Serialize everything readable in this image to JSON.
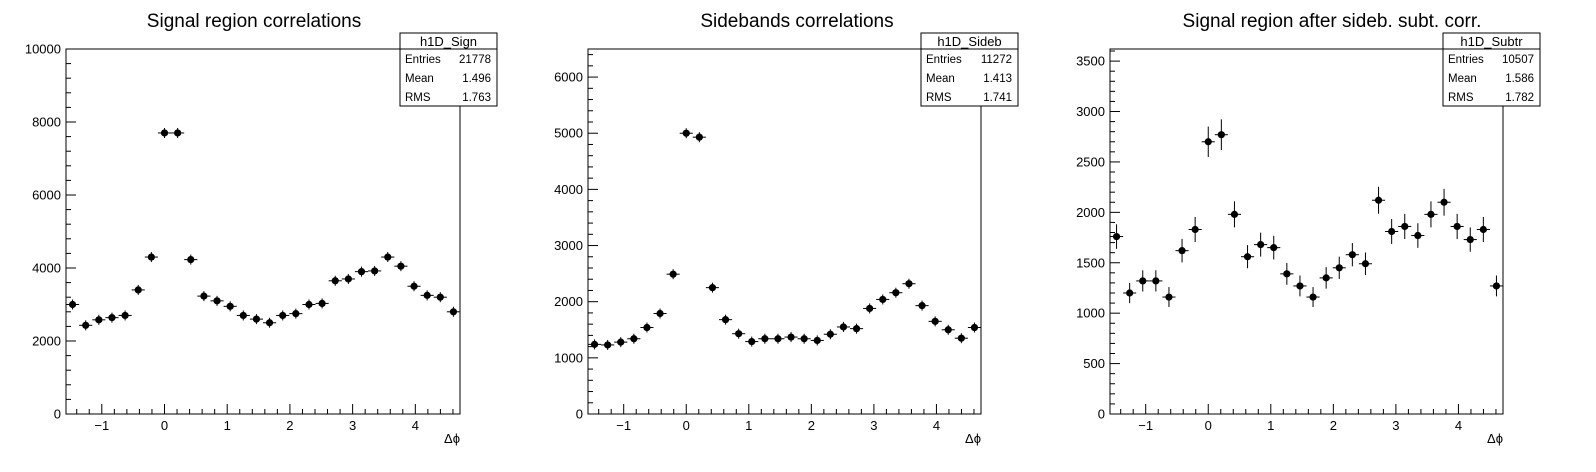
{
  "chart_data": [
    {
      "type": "scatter",
      "title": "Signal region correlations",
      "xlabel": "Δϕ",
      "ylabel": "",
      "xlim": [
        -1.5708,
        4.7124
      ],
      "ylim": [
        0,
        10000
      ],
      "xticks": [
        -1,
        0,
        1,
        2,
        3,
        4
      ],
      "yticks": [
        0,
        2000,
        4000,
        6000,
        8000,
        10000
      ],
      "grid": false,
      "stats": {
        "name": "h1D_Sign",
        "rows": [
          [
            "Entries",
            "21778"
          ],
          [
            "Mean",
            "1.496"
          ],
          [
            "RMS",
            "1.763"
          ]
        ]
      },
      "series": [
        {
          "x": [
            -1.4661,
            -1.2566,
            -1.0472,
            -0.8378,
            -0.6283,
            -0.4189,
            -0.2094,
            0.0,
            0.2094,
            0.4189,
            0.6283,
            0.8378,
            1.0472,
            1.2566,
            1.4661,
            1.6755,
            1.885,
            2.0944,
            2.3038,
            2.5133,
            2.7227,
            2.9322,
            3.1416,
            3.351,
            3.5605,
            3.7699,
            3.9794,
            4.1888,
            4.3982,
            4.6077
          ],
          "y": [
            3000,
            2430,
            2580,
            2640,
            2700,
            3400,
            4300,
            7700,
            7700,
            4230,
            3230,
            3100,
            2950,
            2700,
            2600,
            2500,
            2700,
            2750,
            3000,
            3030,
            3650,
            3700,
            3900,
            3920,
            4300,
            4050,
            3500,
            3250,
            3200,
            2800
          ]
        }
      ]
    },
    {
      "type": "scatter",
      "title": "Sidebands correlations",
      "xlabel": "Δϕ",
      "ylabel": "",
      "xlim": [
        -1.5708,
        4.7124
      ],
      "ylim": [
        0,
        6500
      ],
      "xticks": [
        -1,
        0,
        1,
        2,
        3,
        4
      ],
      "yticks": [
        0,
        1000,
        2000,
        3000,
        4000,
        5000,
        6000
      ],
      "grid": false,
      "stats": {
        "name": "h1D_Sideb",
        "rows": [
          [
            "Entries",
            "11272"
          ],
          [
            "Mean",
            "1.413"
          ],
          [
            "RMS",
            "1.741"
          ]
        ]
      },
      "series": [
        {
          "x": [
            -1.4661,
            -1.2566,
            -1.0472,
            -0.8378,
            -0.6283,
            -0.4189,
            -0.2094,
            0.0,
            0.2094,
            0.4189,
            0.6283,
            0.8378,
            1.0472,
            1.2566,
            1.4661,
            1.6755,
            1.885,
            2.0944,
            2.3038,
            2.5133,
            2.7227,
            2.9322,
            3.1416,
            3.351,
            3.5605,
            3.7699,
            3.9794,
            4.1888,
            4.3982,
            4.6077
          ],
          "y": [
            1240,
            1230,
            1280,
            1340,
            1540,
            1790,
            2490,
            5000,
            4930,
            2250,
            1680,
            1430,
            1290,
            1340,
            1340,
            1370,
            1340,
            1310,
            1420,
            1550,
            1520,
            1880,
            2040,
            2160,
            2320,
            1930,
            1650,
            1500,
            1350,
            1540
          ]
        }
      ]
    },
    {
      "type": "scatter",
      "title": "Signal region after sideb. subt. corr.",
      "xlabel": "Δϕ",
      "ylabel": "",
      "xlim": [
        -1.5708,
        4.7124
      ],
      "ylim": [
        0,
        3620
      ],
      "xticks": [
        -1,
        0,
        1,
        2,
        3,
        4
      ],
      "yticks": [
        0,
        500,
        1000,
        1500,
        2000,
        2500,
        3000,
        3500
      ],
      "grid": false,
      "stats": {
        "name": "h1D_Subtr",
        "rows": [
          [
            "Entries",
            "10507"
          ],
          [
            "Mean",
            "1.586"
          ],
          [
            "RMS",
            "1.782"
          ]
        ]
      },
      "series": [
        {
          "x": [
            -1.4661,
            -1.2566,
            -1.0472,
            -0.8378,
            -0.6283,
            -0.4189,
            -0.2094,
            0.0,
            0.2094,
            0.4189,
            0.6283,
            0.8378,
            1.0472,
            1.2566,
            1.4661,
            1.6755,
            1.885,
            2.0944,
            2.3038,
            2.5133,
            2.7227,
            2.9322,
            3.1416,
            3.351,
            3.5605,
            3.7699,
            3.9794,
            4.1888,
            4.3982,
            4.6077
          ],
          "y": [
            1760,
            1200,
            1320,
            1320,
            1160,
            1620,
            1830,
            2700,
            2770,
            1980,
            1560,
            1680,
            1650,
            1390,
            1270,
            1160,
            1350,
            1450,
            1580,
            1490,
            2120,
            1810,
            1860,
            1770,
            1980,
            2100,
            1860,
            1730,
            1830,
            1270
          ]
        }
      ]
    }
  ]
}
